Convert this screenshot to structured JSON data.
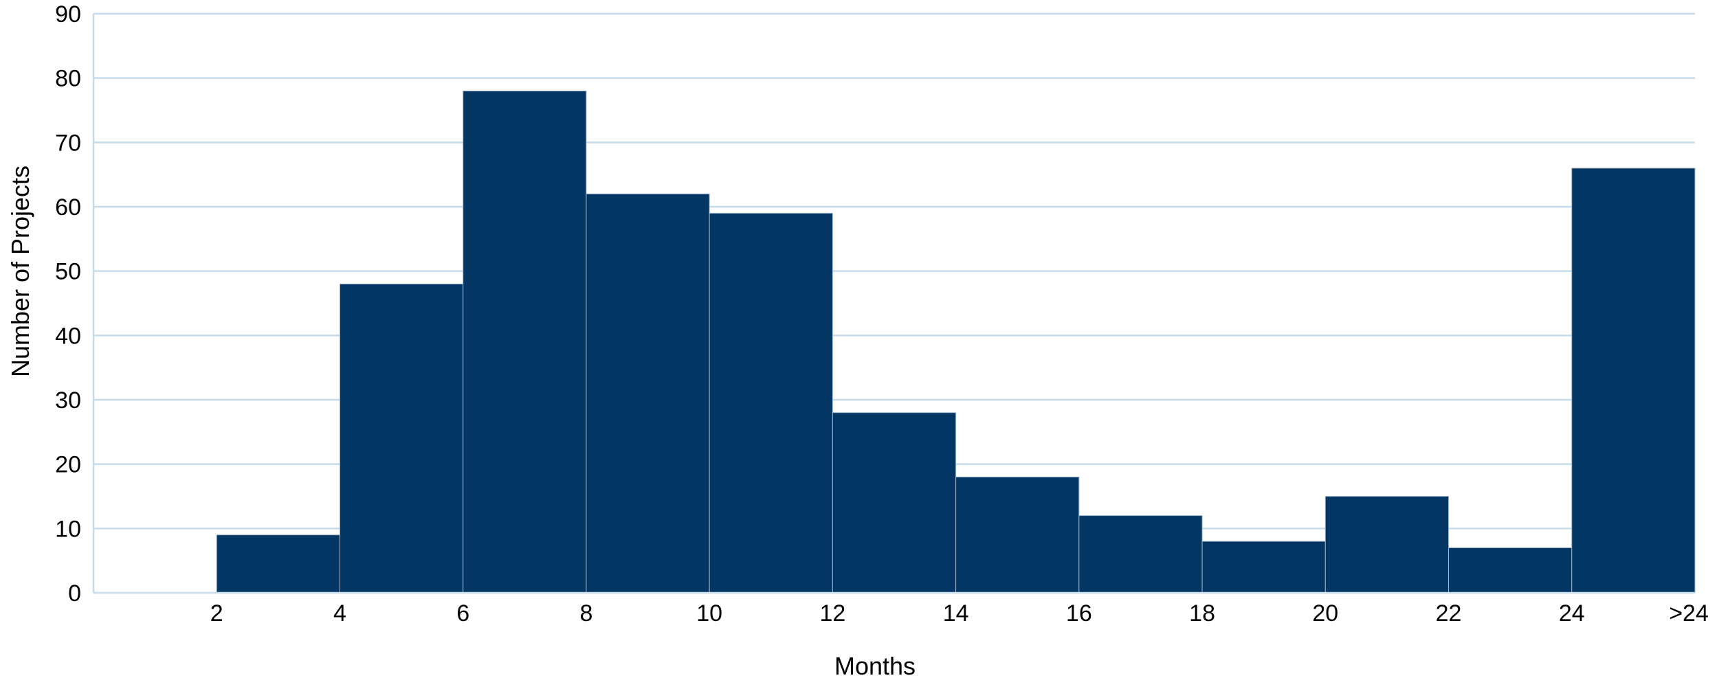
{
  "chart_data": {
    "type": "bar",
    "title": "",
    "xlabel": "Months",
    "ylabel": "Number of Projects",
    "ylim": [
      0,
      90
    ],
    "y_ticks": [
      0,
      10,
      20,
      30,
      40,
      50,
      60,
      70,
      80,
      90
    ],
    "x_tick_labels": [
      "2",
      "4",
      "6",
      "8",
      "10",
      "12",
      "14",
      "16",
      "18",
      "20",
      "22",
      "24",
      ">24"
    ],
    "bins": [
      {
        "start": 0,
        "end": 2,
        "value": 0
      },
      {
        "start": 2,
        "end": 4,
        "value": 9
      },
      {
        "start": 4,
        "end": 6,
        "value": 48
      },
      {
        "start": 6,
        "end": 8,
        "value": 78
      },
      {
        "start": 8,
        "end": 10,
        "value": 62
      },
      {
        "start": 10,
        "end": 12,
        "value": 59
      },
      {
        "start": 12,
        "end": 14,
        "value": 28
      },
      {
        "start": 14,
        "end": 16,
        "value": 18
      },
      {
        "start": 16,
        "end": 18,
        "value": 12
      },
      {
        "start": 18,
        "end": 20,
        "value": 8
      },
      {
        "start": 20,
        "end": 22,
        "value": 15
      },
      {
        "start": 22,
        "end": 24,
        "value": 7
      },
      {
        "start": 24,
        "end": ">24",
        "value": 66
      }
    ],
    "grid": true,
    "legend": "none",
    "colors": {
      "bar": "#033663",
      "bar_edge": "#9fb3c6",
      "grid": "#c5dbea",
      "axis": "#c5dbea"
    }
  }
}
